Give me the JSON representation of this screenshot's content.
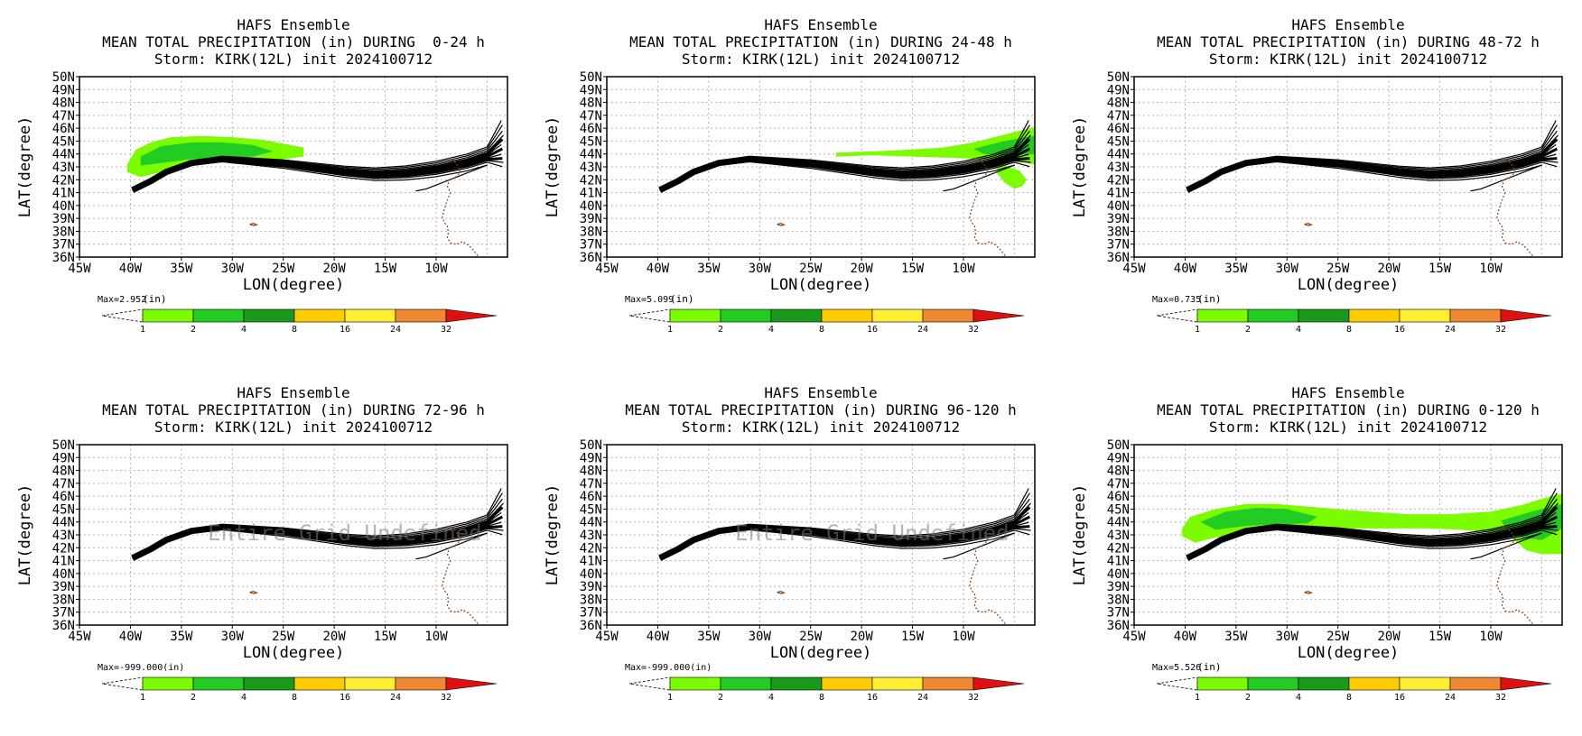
{
  "colors": {
    "light_green": "#7cfc00",
    "green": "#22cc22",
    "dark_green": "#1a9a1a",
    "yellow_orange": "#ffcc00",
    "yellow": "#ffee33",
    "orange": "#ee8833",
    "red": "#dd1111",
    "coast": "#8b4513",
    "grid": "#b4b4b4",
    "track": "#000000"
  },
  "lat_ticks": [
    "50N",
    "49N",
    "48N",
    "47N",
    "46N",
    "45N",
    "44N",
    "43N",
    "42N",
    "41N",
    "40N",
    "39N",
    "38N",
    "37N",
    "36N"
  ],
  "lon_ticks": [
    "45W",
    "40W",
    "35W",
    "30W",
    "25W",
    "20W",
    "15W",
    "10W"
  ],
  "xlabel": "LON(degree)",
  "ylabel": "LAT(degree)",
  "colorbar": {
    "unit": "(in)",
    "levels": [
      "1",
      "2",
      "4",
      "8",
      "16",
      "24",
      "32"
    ],
    "colors": [
      "#7cfc00",
      "#22cc22",
      "#1a9a1a",
      "#ffcc00",
      "#ffee33",
      "#ee8833"
    ],
    "over_color": "#dd1111"
  },
  "chart_data": [
    {
      "type": "heatmap",
      "title_line1": "HAFS Ensemble",
      "title_line2": "MEAN TOTAL PRECIPITATION (in) DURING  0-24 h",
      "title_line3": "Storm: KIRK(12L) init 2024100712",
      "max_label": "Max=2.952",
      "unit": "(in)",
      "max_value": 2.952,
      "watermark": "",
      "xlim": [
        -45,
        -3
      ],
      "ylim": [
        36,
        50
      ],
      "precip_regions": [
        {
          "level": "1-2",
          "lon": [
            -40.3,
            -39.5,
            -38,
            -36,
            -33,
            -30,
            -27,
            -25,
            -23,
            -23,
            -25,
            -28,
            -31,
            -34,
            -37,
            -39,
            -40.3
          ],
          "lat": [
            43.2,
            44.3,
            44.9,
            45.3,
            45.4,
            45.3,
            45.1,
            44.8,
            44.5,
            43.8,
            43.6,
            43.5,
            43.4,
            43.1,
            42.6,
            42.2,
            42.6
          ]
        },
        {
          "level": "2-4",
          "lon": [
            -39,
            -37,
            -34,
            -31,
            -28,
            -26,
            -28,
            -31,
            -34,
            -37,
            -39
          ],
          "lat": [
            43.8,
            44.6,
            44.9,
            44.9,
            44.7,
            44.2,
            43.8,
            43.7,
            43.6,
            43.3,
            43.1
          ]
        }
      ]
    },
    {
      "type": "heatmap",
      "title_line1": "HAFS Ensemble",
      "title_line2": "MEAN TOTAL PRECIPITATION (in) DURING 24-48 h",
      "title_line3": "Storm: KIRK(12L) init 2024100712",
      "max_label": "Max=5.099",
      "unit": "(in)",
      "max_value": 5.099,
      "watermark": "",
      "xlim": [
        -45,
        -3
      ],
      "ylim": [
        36,
        50
      ],
      "precip_regions": [
        {
          "level": "1-2",
          "lon": [
            -22.5,
            -19,
            -16,
            -12,
            -9,
            -6,
            -3,
            -3,
            -5,
            -8,
            -11,
            -15,
            -19,
            -22.5
          ],
          "lat": [
            44.1,
            44.2,
            44.3,
            44.5,
            44.9,
            45.5,
            46.1,
            43.2,
            43.4,
            43.6,
            43.7,
            43.8,
            43.9,
            43.8
          ]
        },
        {
          "level": "1-2",
          "lon": [
            -6.5,
            -5.5,
            -4.5,
            -3.8,
            -4.2,
            -5,
            -6,
            -6.8
          ],
          "lat": [
            43.3,
            43.0,
            42.7,
            42.0,
            41.5,
            41.3,
            41.8,
            42.6
          ]
        },
        {
          "level": "2-4",
          "lon": [
            -9,
            -6,
            -3,
            -3,
            -5,
            -8
          ],
          "lat": [
            44.4,
            45.0,
            45.4,
            44.0,
            43.9,
            44.0
          ]
        }
      ]
    },
    {
      "type": "heatmap",
      "title_line1": "HAFS Ensemble",
      "title_line2": "MEAN TOTAL PRECIPITATION (in) DURING 48-72 h",
      "title_line3": "Storm: KIRK(12L) init 2024100712",
      "max_label": "Max=0.735",
      "unit": "(in)",
      "max_value": 0.735,
      "watermark": "",
      "xlim": [
        -45,
        -3
      ],
      "ylim": [
        36,
        50
      ],
      "precip_regions": []
    },
    {
      "type": "heatmap",
      "title_line1": "HAFS Ensemble",
      "title_line2": "MEAN TOTAL PRECIPITATION (in) DURING 72-96 h",
      "title_line3": "Storm: KIRK(12L) init 2024100712",
      "max_label": "Max=-999.000(in)",
      "unit": "",
      "max_value": -999.0,
      "watermark": "Entire Grid Undefined",
      "xlim": [
        -45,
        -3
      ],
      "ylim": [
        36,
        50
      ],
      "precip_regions": []
    },
    {
      "type": "heatmap",
      "title_line1": "HAFS Ensemble",
      "title_line2": "MEAN TOTAL PRECIPITATION (in) DURING 96-120 h",
      "title_line3": "Storm: KIRK(12L) init 2024100712",
      "max_label": "Max=-999.000(in)",
      "unit": "",
      "max_value": -999.0,
      "watermark": "Entire Grid Undefined",
      "xlim": [
        -45,
        -3
      ],
      "ylim": [
        36,
        50
      ],
      "precip_regions": []
    },
    {
      "type": "heatmap",
      "title_line1": "HAFS Ensemble",
      "title_line2": "MEAN TOTAL PRECIPITATION (in) DURING 0-120 h",
      "title_line3": "Storm: KIRK(12L) init 2024100712",
      "max_label": "Max=5.526",
      "unit": "(in)",
      "max_value": 5.526,
      "watermark": "",
      "xlim": [
        -45,
        -3
      ],
      "ylim": [
        36,
        50
      ],
      "precip_regions": [
        {
          "level": "1-2",
          "lon": [
            -40.3,
            -39.5,
            -37,
            -34,
            -31,
            -28,
            -25,
            -22,
            -18,
            -14,
            -10,
            -7,
            -5,
            -3,
            -3,
            -5,
            -6.5,
            -8,
            -10,
            -13,
            -16,
            -20,
            -24,
            -28,
            -31,
            -34,
            -37,
            -39,
            -40.3
          ],
          "lat": [
            43.5,
            44.4,
            45.0,
            45.4,
            45.4,
            45.2,
            45.0,
            44.8,
            44.6,
            44.6,
            44.8,
            45.3,
            45.8,
            46.2,
            41.5,
            41.5,
            41.8,
            42.8,
            43.2,
            43.4,
            43.5,
            43.5,
            43.5,
            43.6,
            43.5,
            43.3,
            42.8,
            42.4,
            42.9
          ]
        },
        {
          "level": "2-4",
          "lon": [
            -38.5,
            -36,
            -33,
            -30,
            -27,
            -28,
            -31,
            -34,
            -37
          ],
          "lat": [
            44.0,
            44.8,
            45.1,
            45.0,
            44.4,
            43.9,
            43.8,
            43.7,
            43.4
          ]
        },
        {
          "level": "2-4",
          "lon": [
            -9,
            -6,
            -3,
            -3,
            -5,
            -7,
            -8.5
          ],
          "lat": [
            44.1,
            44.8,
            45.4,
            43.5,
            42.6,
            42.8,
            43.5
          ]
        }
      ]
    }
  ]
}
